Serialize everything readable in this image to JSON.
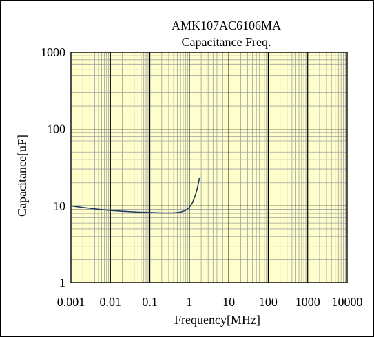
{
  "chart_data": {
    "type": "line",
    "title_lines": [
      "AMK107AC6106MA",
      "Capacitance Freq."
    ],
    "xlabel": "Frequency[MHz]",
    "ylabel": "Capacitance[uF]",
    "x_scale": "log",
    "y_scale": "log",
    "xlim": [
      0.001,
      10000
    ],
    "ylim": [
      1,
      1000
    ],
    "x_ticks": [
      0.001,
      0.01,
      0.1,
      1,
      10,
      100,
      1000,
      10000
    ],
    "x_tick_labels": [
      "0.001",
      "0.01",
      "0.1",
      "1",
      "10",
      "100",
      "1000",
      "10000"
    ],
    "y_ticks": [
      1,
      10,
      100,
      1000
    ],
    "y_tick_labels": [
      "1",
      "10",
      "100",
      "1000"
    ],
    "grid": true,
    "legend": "none",
    "series": [
      {
        "x": [
          0.001,
          0.002,
          0.005,
          0.01,
          0.02,
          0.05,
          0.1,
          0.2,
          0.4,
          0.6,
          0.8,
          1.0,
          1.2,
          1.4,
          1.6,
          1.8
        ],
        "y": [
          10.0,
          9.5,
          9.0,
          8.7,
          8.5,
          8.3,
          8.2,
          8.1,
          8.1,
          8.3,
          8.7,
          9.5,
          11.0,
          13.5,
          17.0,
          23.0
        ]
      }
    ]
  },
  "colors": {
    "plot_background": "#ffffcc",
    "minor_grid": "#a0a0a0",
    "major_grid": "#000000",
    "series_line": "#1f3a5f"
  }
}
